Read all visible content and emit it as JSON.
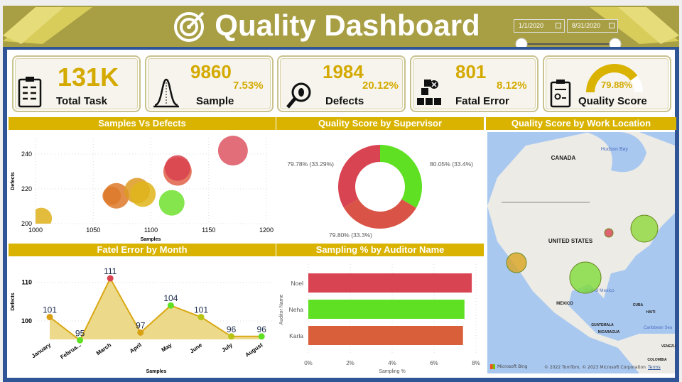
{
  "header": {
    "title": "Quality Dashboard",
    "date_start": "1/1/2020",
    "date_end": "8/31/2020",
    "date_range_fill": 1.0
  },
  "kpis": [
    {
      "label": "Total Task",
      "value": "131K",
      "icon": "checklist-icon"
    },
    {
      "label": "Sample",
      "value": "9860",
      "pct": "7.53%",
      "icon": "bell-curve-icon"
    },
    {
      "label": "Defects",
      "value": "1984",
      "pct": "20.12%",
      "icon": "bug-magnifier-icon"
    },
    {
      "label": "Fatal Error",
      "value": "801",
      "pct": "8.12%",
      "icon": "boxes-error-icon"
    },
    {
      "label": "Quality Score",
      "pct": "79.88%",
      "gauge_fraction": 0.7988,
      "icon": "certificate-icon"
    }
  ],
  "colors": {
    "accent": "#d9b300",
    "header": "#a89f45",
    "frame": "#2f5597",
    "red": "#d94452",
    "green": "#5fe022",
    "orange": "#d95f3b"
  },
  "chart_data": [
    {
      "type": "scatter",
      "title": "Samples Vs Defects",
      "xlabel": "Samples",
      "ylabel": "Defects",
      "xlim": [
        1000,
        1200
      ],
      "ylim": [
        200,
        248
      ],
      "xticks": [
        "1000",
        "1050",
        "1100",
        "1150",
        "1200"
      ],
      "yticks": [
        "200",
        "220",
        "240"
      ],
      "grid": true,
      "points": [
        {
          "x": 1005,
          "y": 203,
          "color": "#deb01c"
        },
        {
          "x": 1066,
          "y": 216,
          "color": "#dd7a2a"
        },
        {
          "x": 1070,
          "y": 216,
          "color": "#dd7a2a"
        },
        {
          "x": 1088,
          "y": 219,
          "color": "#dd9a22"
        },
        {
          "x": 1093,
          "y": 217,
          "color": "#dfb51a"
        },
        {
          "x": 1118,
          "y": 212,
          "color": "#6ee02e"
        },
        {
          "x": 1123,
          "y": 230,
          "color": "#df6048"
        },
        {
          "x": 1123,
          "y": 232,
          "color": "#d9414d"
        },
        {
          "x": 1171,
          "y": 242,
          "color": "#dd5562"
        }
      ]
    },
    {
      "type": "pie",
      "title": "Quality Score by Supervisor",
      "slices": [
        {
          "label": "80.05% (33.4%)",
          "share": 33.4,
          "color": "#5fe022"
        },
        {
          "label": "79.80% (33.3%)",
          "share": 33.3,
          "color": "#d95446"
        },
        {
          "label": "79.78% (33.29%)",
          "share": 33.29,
          "color": "#d94452"
        }
      ]
    },
    {
      "type": "area",
      "title": "Fatel Error by Month",
      "xlabel": "Samples",
      "ylabel": "Defects",
      "yticks": [
        "100",
        "110"
      ],
      "categories": [
        "January",
        "Februa...",
        "March",
        "April",
        "May",
        "June",
        "July",
        "August"
      ],
      "values": [
        101,
        95,
        111,
        97,
        104,
        101,
        96,
        96
      ],
      "point_colors": [
        "#d9a013",
        "#5fe022",
        "#d94452",
        "#d9a013",
        "#5fe022",
        "#b8c414",
        "#b8c414",
        "#5fe022"
      ]
    },
    {
      "type": "bar",
      "title": "Sampling % by Auditor Name",
      "xlabel": "Sampling %",
      "ylabel": "Auditor Name",
      "xlim": [
        0,
        8
      ],
      "xticks": [
        "0%",
        "2%",
        "4%",
        "6%",
        "8%"
      ],
      "categories": [
        "Noel",
        "Neha",
        "Karla"
      ],
      "values": [
        7.8,
        7.45,
        7.38
      ],
      "colors": [
        "#d94452",
        "#5fe022",
        "#d95f3b"
      ]
    }
  ],
  "map": {
    "title": "Quality Score by Work Location",
    "labels": [
      "CANADA",
      "Hudson Bay",
      "UNITED STATES",
      "MEXICO",
      "Gulf of Mexico",
      "CUBA",
      "HAITI",
      "GUATEMALA",
      "NICARAGUA",
      "Caribbean Sea",
      "VENEZU",
      "COLOMBIA"
    ],
    "brand": "Microsoft Bing",
    "copyright": "© 2022 TomTom, © 2023 Microsoft Corporation",
    "terms": "Terms",
    "bubbles": [
      {
        "place": "California",
        "color": "#d9a520"
      },
      {
        "place": "Texas",
        "color": "#7fdc3a"
      },
      {
        "place": "Illinois",
        "color": "#d94452"
      },
      {
        "place": "New York",
        "color": "#8fd83a"
      }
    ]
  }
}
